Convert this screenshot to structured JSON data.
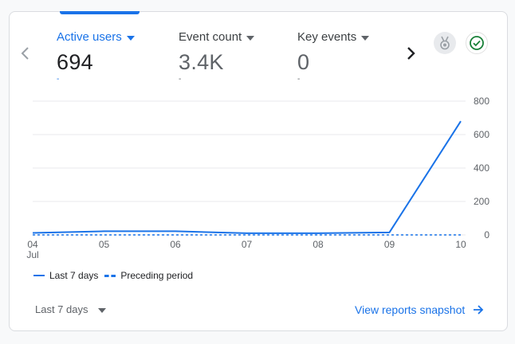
{
  "metrics": [
    {
      "label": "Active users",
      "value": "694",
      "sub": "-",
      "active": true
    },
    {
      "label": "Event count",
      "value": "3.4K",
      "sub": "-",
      "active": false
    },
    {
      "label": "Key events",
      "value": "0",
      "sub": "-",
      "active": false
    }
  ],
  "icons": {
    "prev": "chevron-left-icon",
    "next": "chevron-right-icon",
    "badge": "medal-badge-icon",
    "check": "check-circle-icon"
  },
  "colors": {
    "accent": "#1a73e8",
    "check": "#188038"
  },
  "legend": {
    "current": "Last 7 days",
    "previous": "Preceding period"
  },
  "footer": {
    "date_range": "Last 7 days",
    "view_link": "View reports snapshot"
  },
  "chart_data": {
    "type": "line",
    "x": [
      "04",
      "05",
      "06",
      "07",
      "08",
      "09",
      "10"
    ],
    "x_sublabel": {
      "04": "Jul"
    },
    "ylim": [
      0,
      800
    ],
    "yticks": [
      0,
      200,
      400,
      600,
      800
    ],
    "y_axis_side": "right",
    "grid": true,
    "series": [
      {
        "name": "Last 7 days",
        "style": "solid",
        "values": [
          12,
          22,
          22,
          10,
          10,
          15,
          680
        ]
      },
      {
        "name": "Preceding period",
        "style": "dashed",
        "values": [
          0,
          0,
          0,
          0,
          0,
          0,
          0
        ]
      }
    ]
  }
}
